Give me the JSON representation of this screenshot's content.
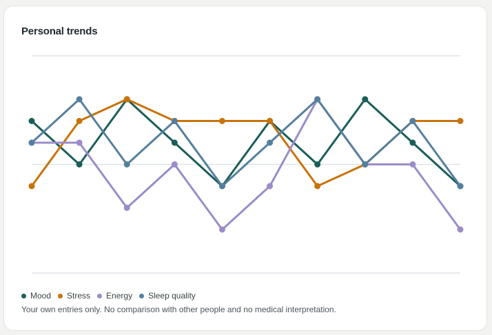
{
  "card": {
    "title": "Personal trends",
    "note": "Your own entries only. No comparison with other people and no medical interpretation."
  },
  "chart_data": {
    "type": "line",
    "title": "Personal trends",
    "x": [
      1,
      2,
      3,
      4,
      5,
      6,
      7,
      8,
      9,
      10
    ],
    "ylim": [
      0,
      10
    ],
    "grid": true,
    "legend": "bottom-left",
    "series": [
      {
        "name": "Mood",
        "color": "#1b5e58",
        "values": [
          7,
          5,
          8,
          6,
          4,
          7,
          5,
          8,
          6,
          4
        ]
      },
      {
        "name": "Stress",
        "color": "#c8730a",
        "values": [
          4,
          7,
          8,
          7,
          7,
          7,
          4,
          5,
          7,
          7
        ]
      },
      {
        "name": "Energy",
        "color": "#9b8cc9",
        "values": [
          6,
          6,
          3,
          5,
          2,
          4,
          8,
          5,
          5,
          2
        ]
      },
      {
        "name": "Sleep quality",
        "color": "#557f9e",
        "values": [
          6,
          8,
          5,
          7,
          4,
          6,
          8,
          5,
          7,
          4
        ]
      }
    ]
  }
}
